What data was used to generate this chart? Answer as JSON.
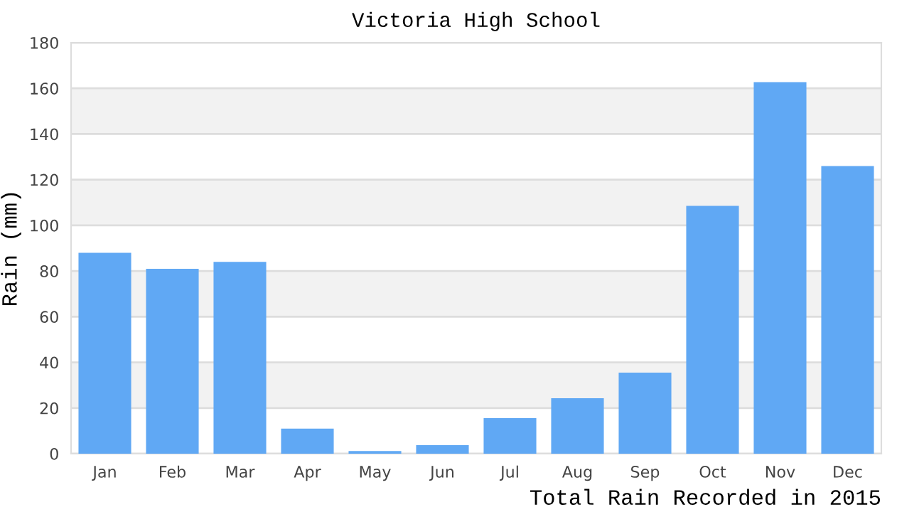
{
  "chart_data": {
    "type": "bar",
    "title": "Victoria High School",
    "xlabel": "Total Rain Recorded in 2015",
    "ylabel": "Rain (mm)",
    "categories": [
      "Jan",
      "Feb",
      "Mar",
      "Apr",
      "May",
      "Jun",
      "Jul",
      "Aug",
      "Sep",
      "Oct",
      "Nov",
      "Dec"
    ],
    "values": [
      88,
      81,
      84,
      11,
      1.2,
      3.7,
      15.6,
      24.3,
      35.5,
      108.5,
      162.7,
      126
    ],
    "color": "#60a8f4",
    "ylim": [
      0,
      180
    ],
    "yticks": [
      0,
      20,
      40,
      60,
      80,
      100,
      120,
      140,
      160,
      180
    ],
    "grid": "y",
    "bands": [
      {
        "axis": "y",
        "from": 20,
        "to": 40,
        "color": "#f2f2f2"
      },
      {
        "axis": "y",
        "from": 60,
        "to": 80,
        "color": "#f2f2f2"
      },
      {
        "axis": "y",
        "from": 100,
        "to": 120,
        "color": "#f2f2f2"
      },
      {
        "axis": "y",
        "from": 140,
        "to": 160,
        "color": "#f2f2f2"
      }
    ]
  }
}
